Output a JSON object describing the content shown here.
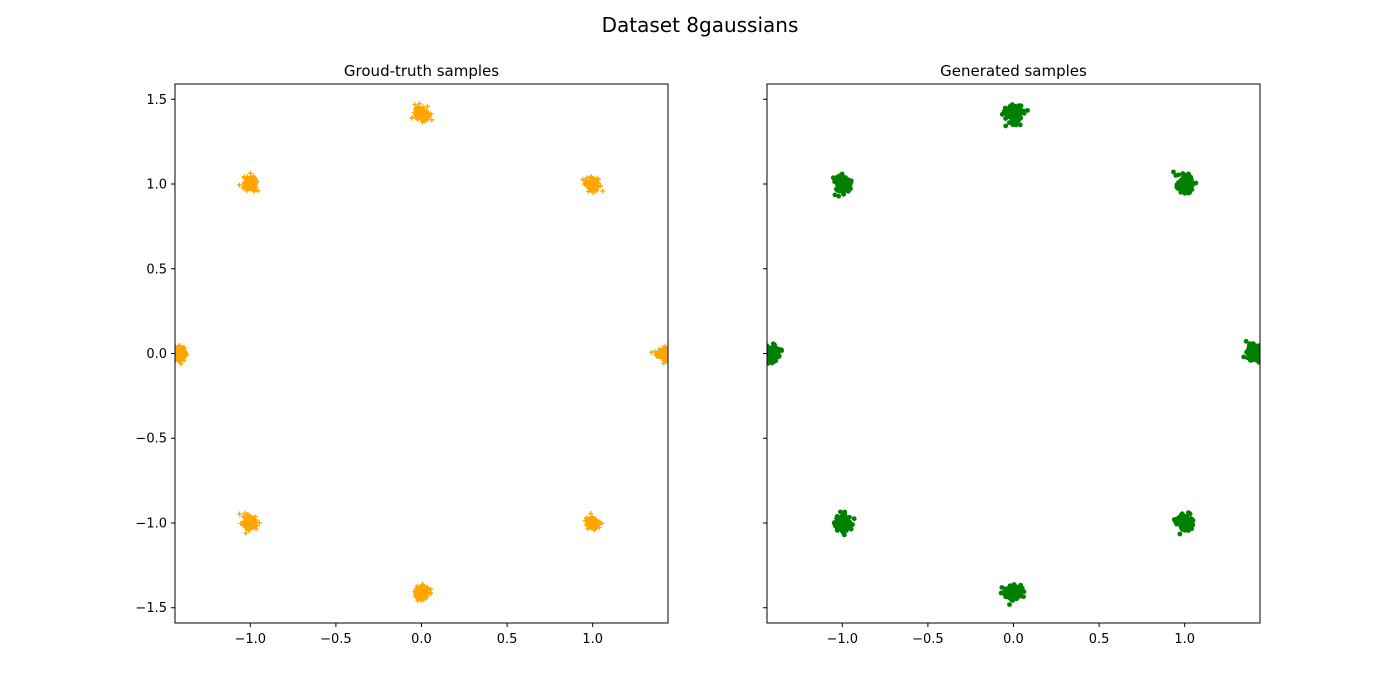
{
  "figure": {
    "title": "Dataset 8gaussians"
  },
  "chart_data": [
    {
      "type": "scatter",
      "title": "Groud-truth samples",
      "xlabel": "",
      "ylabel": "",
      "xlim": [
        -1.44,
        1.44
      ],
      "ylim": [
        -1.59,
        1.59
      ],
      "x_ticks": [
        -1.0,
        -0.5,
        0.0,
        0.5,
        1.0
      ],
      "x_tick_labels": [
        "−1.0",
        "−0.5",
        "0.0",
        "0.5",
        "1.0"
      ],
      "y_ticks": [
        1.5,
        1.0,
        0.5,
        0.0,
        -0.5,
        -1.0,
        -1.5
      ],
      "y_tick_labels": [
        "1.5",
        "1.0",
        "0.5",
        "0.0",
        "−0.5",
        "−1.0",
        "−1.5"
      ],
      "show_y_tick_labels": true,
      "grid": false,
      "marker": "plus",
      "color": "#ffa500",
      "series": [
        {
          "cluster_centers": [
            [
              1.414,
              0.0
            ],
            [
              -1.414,
              0.0
            ],
            [
              0.0,
              1.414
            ],
            [
              0.0,
              -1.414
            ],
            [
              1.0,
              1.0
            ],
            [
              1.0,
              -1.0
            ],
            [
              -1.0,
              1.0
            ],
            [
              -1.0,
              -1.0
            ]
          ],
          "cluster_std": 0.02
        }
      ]
    },
    {
      "type": "scatter",
      "title": "Generated samples",
      "xlabel": "",
      "ylabel": "",
      "xlim": [
        -1.44,
        1.44
      ],
      "ylim": [
        -1.59,
        1.59
      ],
      "x_ticks": [
        -1.0,
        -0.5,
        0.0,
        0.5,
        1.0
      ],
      "x_tick_labels": [
        "−1.0",
        "−0.5",
        "0.0",
        "0.5",
        "1.0"
      ],
      "y_ticks": [
        1.5,
        1.0,
        0.5,
        0.0,
        -0.5,
        -1.0,
        -1.5
      ],
      "y_tick_labels": [
        "1.5",
        "1.0",
        "0.5",
        "0.0",
        "−0.5",
        "−1.0",
        "−1.5"
      ],
      "show_y_tick_labels": false,
      "grid": false,
      "marker": "dot",
      "color": "#008000",
      "series": [
        {
          "cluster_centers": [
            [
              1.414,
              0.0
            ],
            [
              -1.414,
              0.0
            ],
            [
              0.0,
              1.414
            ],
            [
              0.0,
              -1.414
            ],
            [
              1.0,
              1.0
            ],
            [
              1.0,
              -1.0
            ],
            [
              -1.0,
              1.0
            ],
            [
              -1.0,
              -1.0
            ]
          ],
          "cluster_std": 0.025
        }
      ]
    }
  ]
}
